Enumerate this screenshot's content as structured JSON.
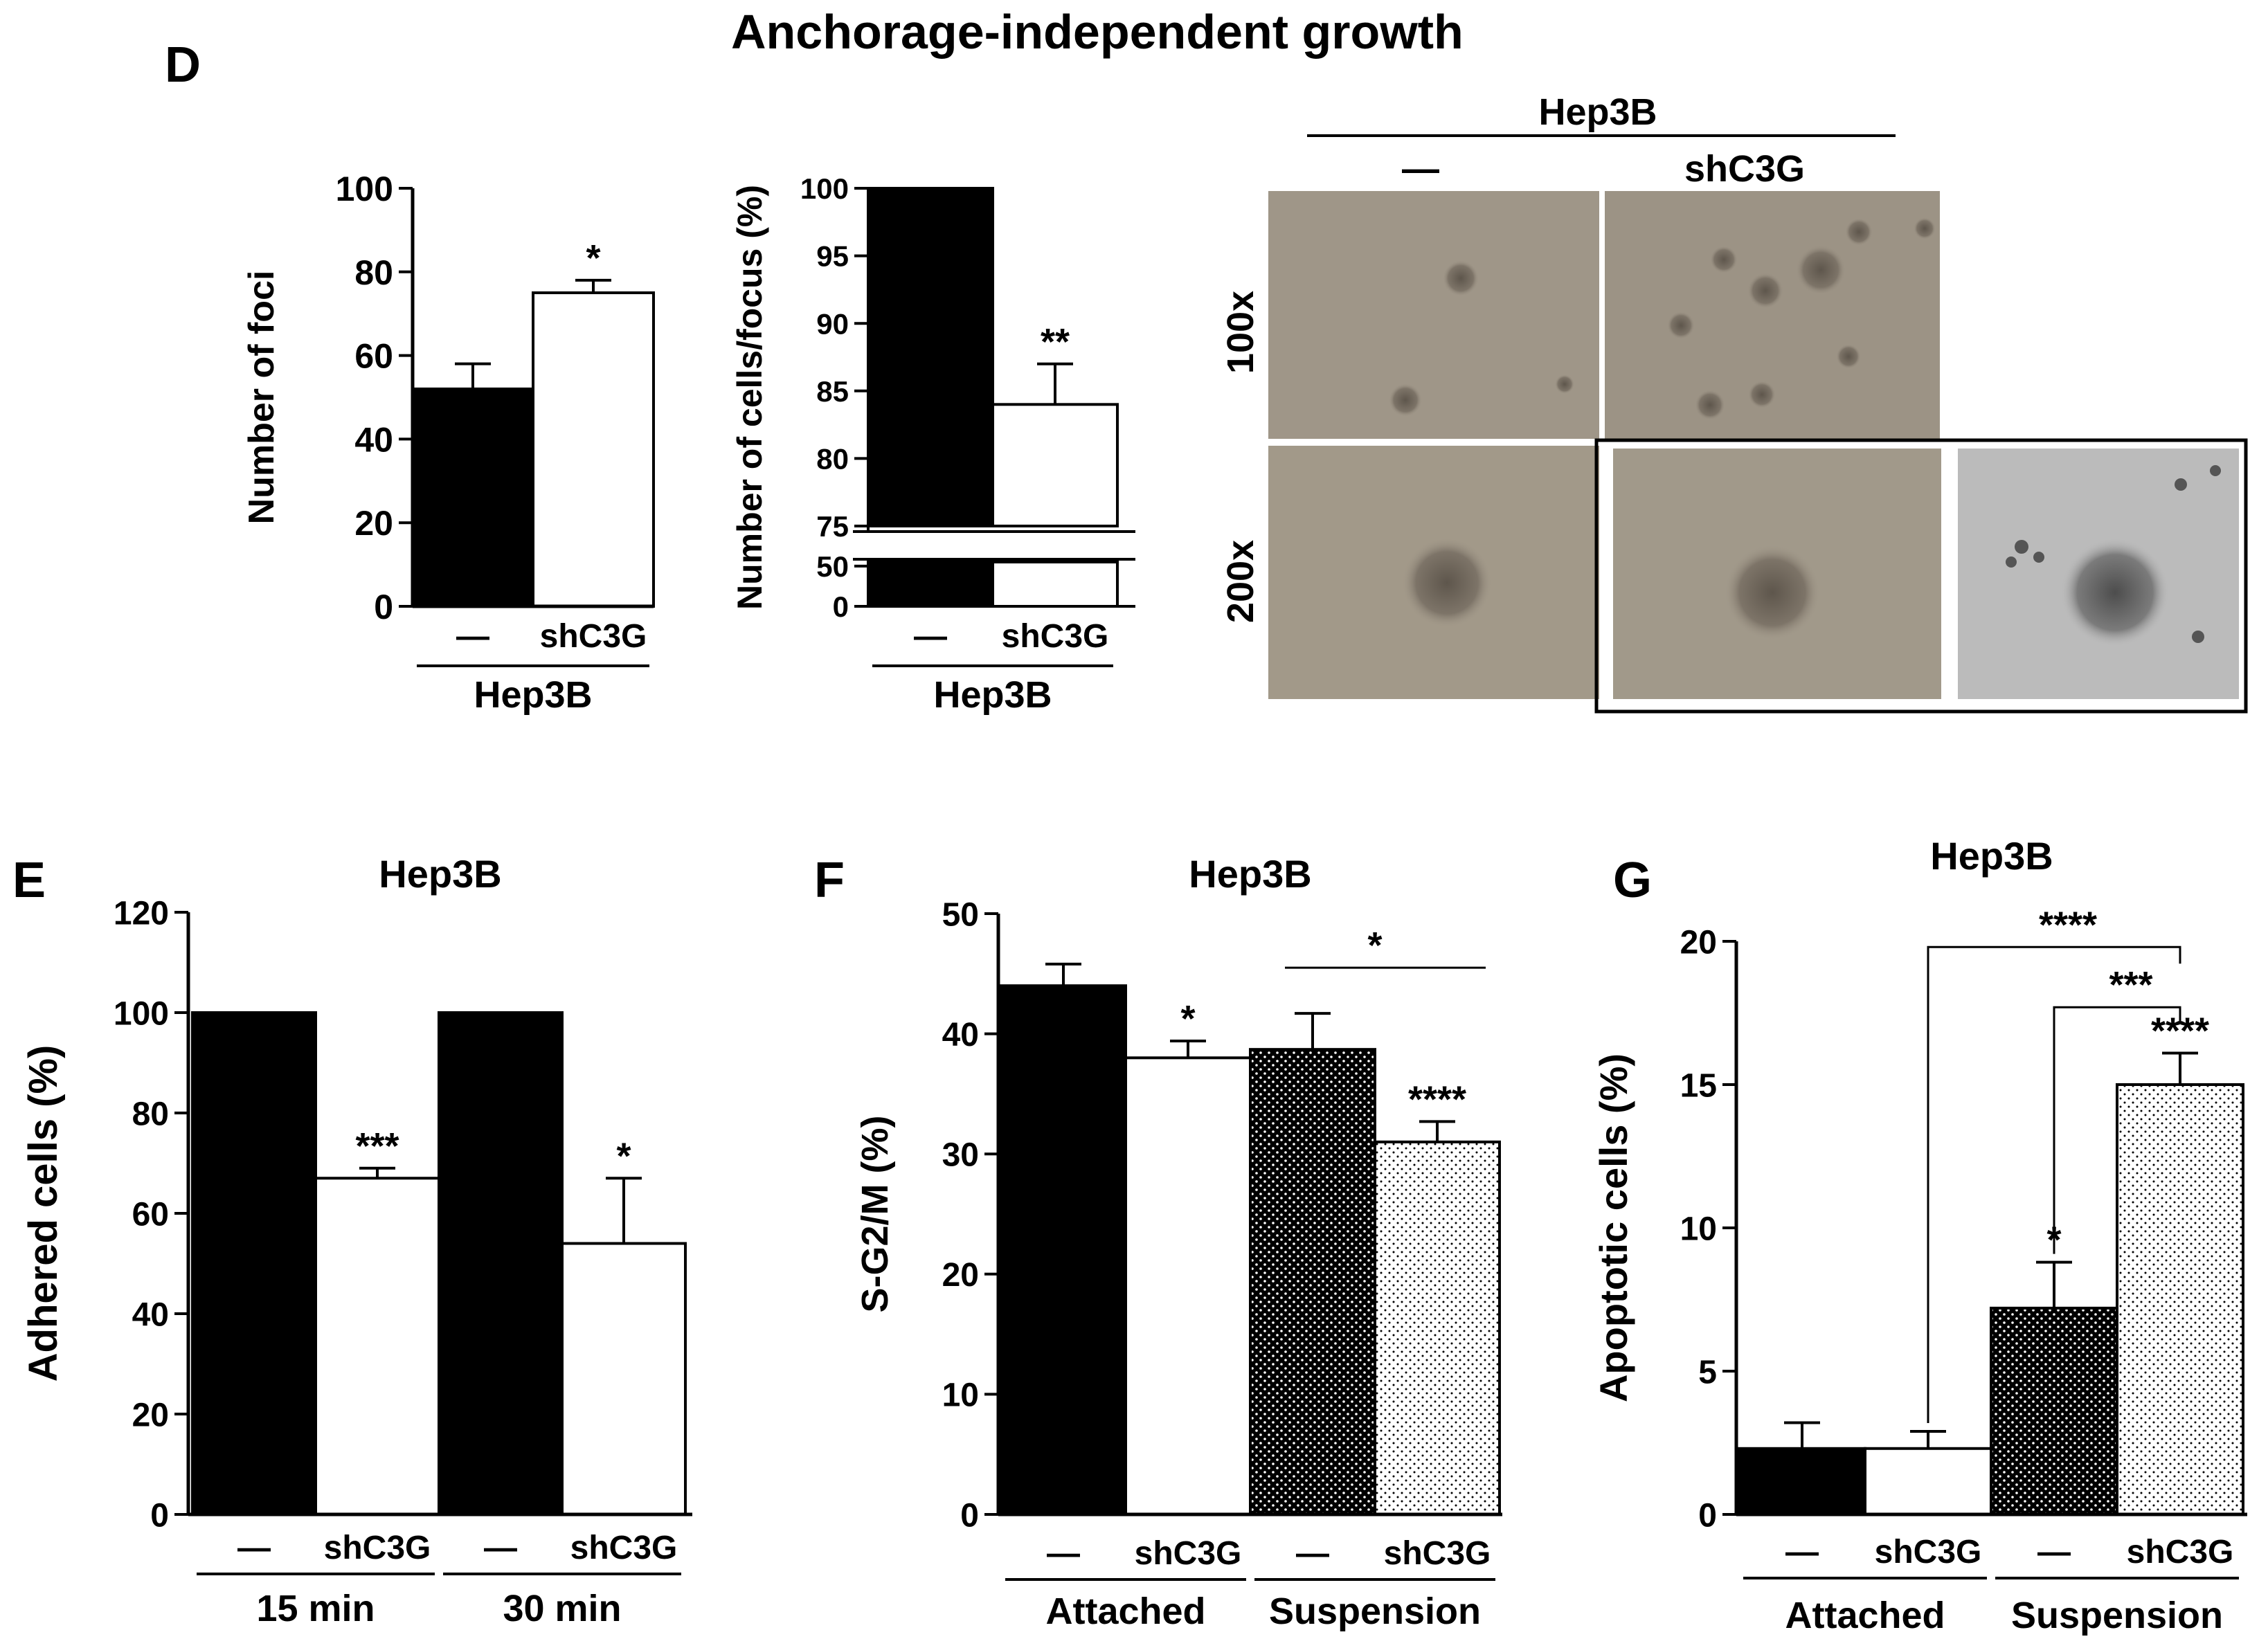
{
  "figure_title": "Anchorage-independent growth",
  "panel_labels": {
    "d": "D",
    "e": "E",
    "f": "F",
    "g": "G"
  },
  "colors": {
    "black_bar": "#000000",
    "white_bar": "#ffffff",
    "micro_tan": "#9d9486",
    "micro_gray": "#b9b9b9"
  },
  "micrographs": {
    "group": "Hep3B",
    "cols": [
      "—",
      "shC3G"
    ],
    "rows": [
      "100x",
      "200x"
    ],
    "icon": "microscopy-image"
  },
  "chart_data": [
    {
      "id": "foci",
      "type": "bar",
      "title": "",
      "ylabel": "Number of foci",
      "ylim": [
        0,
        100
      ],
      "yticks": [
        0,
        20,
        40,
        60,
        80,
        100
      ],
      "categories": [
        "—",
        "shC3G"
      ],
      "values": [
        52,
        75
      ],
      "errors": [
        6,
        3
      ],
      "fills": [
        "black",
        "white"
      ],
      "significance": [
        "",
        "*"
      ],
      "groups": [
        {
          "label": "Hep3B",
          "from": 0,
          "to": 1
        }
      ]
    },
    {
      "id": "cells_focus",
      "type": "bar",
      "title": "",
      "ylabel": "Number of cells/focus (%)",
      "ylim": [
        0,
        100
      ],
      "axis_break": [
        55,
        75
      ],
      "yticks_upper": [
        75,
        80,
        85,
        90,
        95,
        100
      ],
      "yticks_lower": [
        0,
        50
      ],
      "categories": [
        "—",
        "shC3G"
      ],
      "values": [
        100,
        84
      ],
      "errors": [
        0,
        3
      ],
      "fills": [
        "black",
        "white"
      ],
      "significance": [
        "",
        "**"
      ],
      "groups": [
        {
          "label": "Hep3B",
          "from": 0,
          "to": 1
        }
      ]
    },
    {
      "id": "adhered",
      "type": "bar",
      "title": "Hep3B",
      "ylabel": "Adhered cells (%)",
      "ylim": [
        0,
        120
      ],
      "yticks": [
        0,
        20,
        40,
        60,
        80,
        100,
        120
      ],
      "categories": [
        "—",
        "shC3G",
        "—",
        "shC3G"
      ],
      "values": [
        100,
        67,
        100,
        54
      ],
      "errors": [
        0,
        2,
        0,
        13
      ],
      "fills": [
        "black",
        "white",
        "black",
        "white"
      ],
      "significance": [
        "",
        "***",
        "",
        "*"
      ],
      "groups": [
        {
          "label": "15 min",
          "from": 0,
          "to": 1
        },
        {
          "label": "30 min",
          "from": 2,
          "to": 3
        }
      ]
    },
    {
      "id": "sg2m",
      "type": "bar",
      "title": "Hep3B",
      "ylabel": "S-G2/M (%)",
      "ylim": [
        0,
        50
      ],
      "yticks": [
        0,
        10,
        20,
        30,
        40,
        50
      ],
      "categories": [
        "—",
        "shC3G",
        "—",
        "shC3G"
      ],
      "values": [
        44,
        38,
        38.7,
        31
      ],
      "errors": [
        1.8,
        1.4,
        3,
        1.7
      ],
      "fills": [
        "black",
        "white",
        "dense-dots",
        "light-dots"
      ],
      "significance": [
        "",
        "*",
        "",
        "****"
      ],
      "brackets": [
        {
          "from": 2,
          "to": 3,
          "y": 45.5,
          "label": "*"
        }
      ],
      "groups": [
        {
          "label": "Attached",
          "from": 0,
          "to": 1
        },
        {
          "label": "Suspension",
          "from": 2,
          "to": 3
        }
      ]
    },
    {
      "id": "apoptotic",
      "type": "bar",
      "title": "Hep3B",
      "ylabel": "Apoptotic cells (%)",
      "ylim": [
        0,
        20
      ],
      "yticks": [
        0,
        5,
        10,
        15,
        20
      ],
      "categories": [
        "—",
        "shC3G",
        "—",
        "shC3G"
      ],
      "values": [
        2.3,
        2.3,
        7.2,
        15
      ],
      "errors": [
        0.9,
        0.6,
        1.6,
        1.1
      ],
      "fills": [
        "black",
        "white",
        "dense-dots",
        "light-dots"
      ],
      "significance": [
        "",
        "",
        "*",
        "****"
      ],
      "brackets": [
        {
          "from": 1,
          "to": 3,
          "y": 19.8,
          "label": "****"
        },
        {
          "from": 2,
          "to": 3,
          "y": 17.7,
          "label": "***"
        }
      ],
      "groups": [
        {
          "label": "Attached",
          "from": 0,
          "to": 1
        },
        {
          "label": "Suspension",
          "from": 2,
          "to": 3
        }
      ]
    }
  ]
}
